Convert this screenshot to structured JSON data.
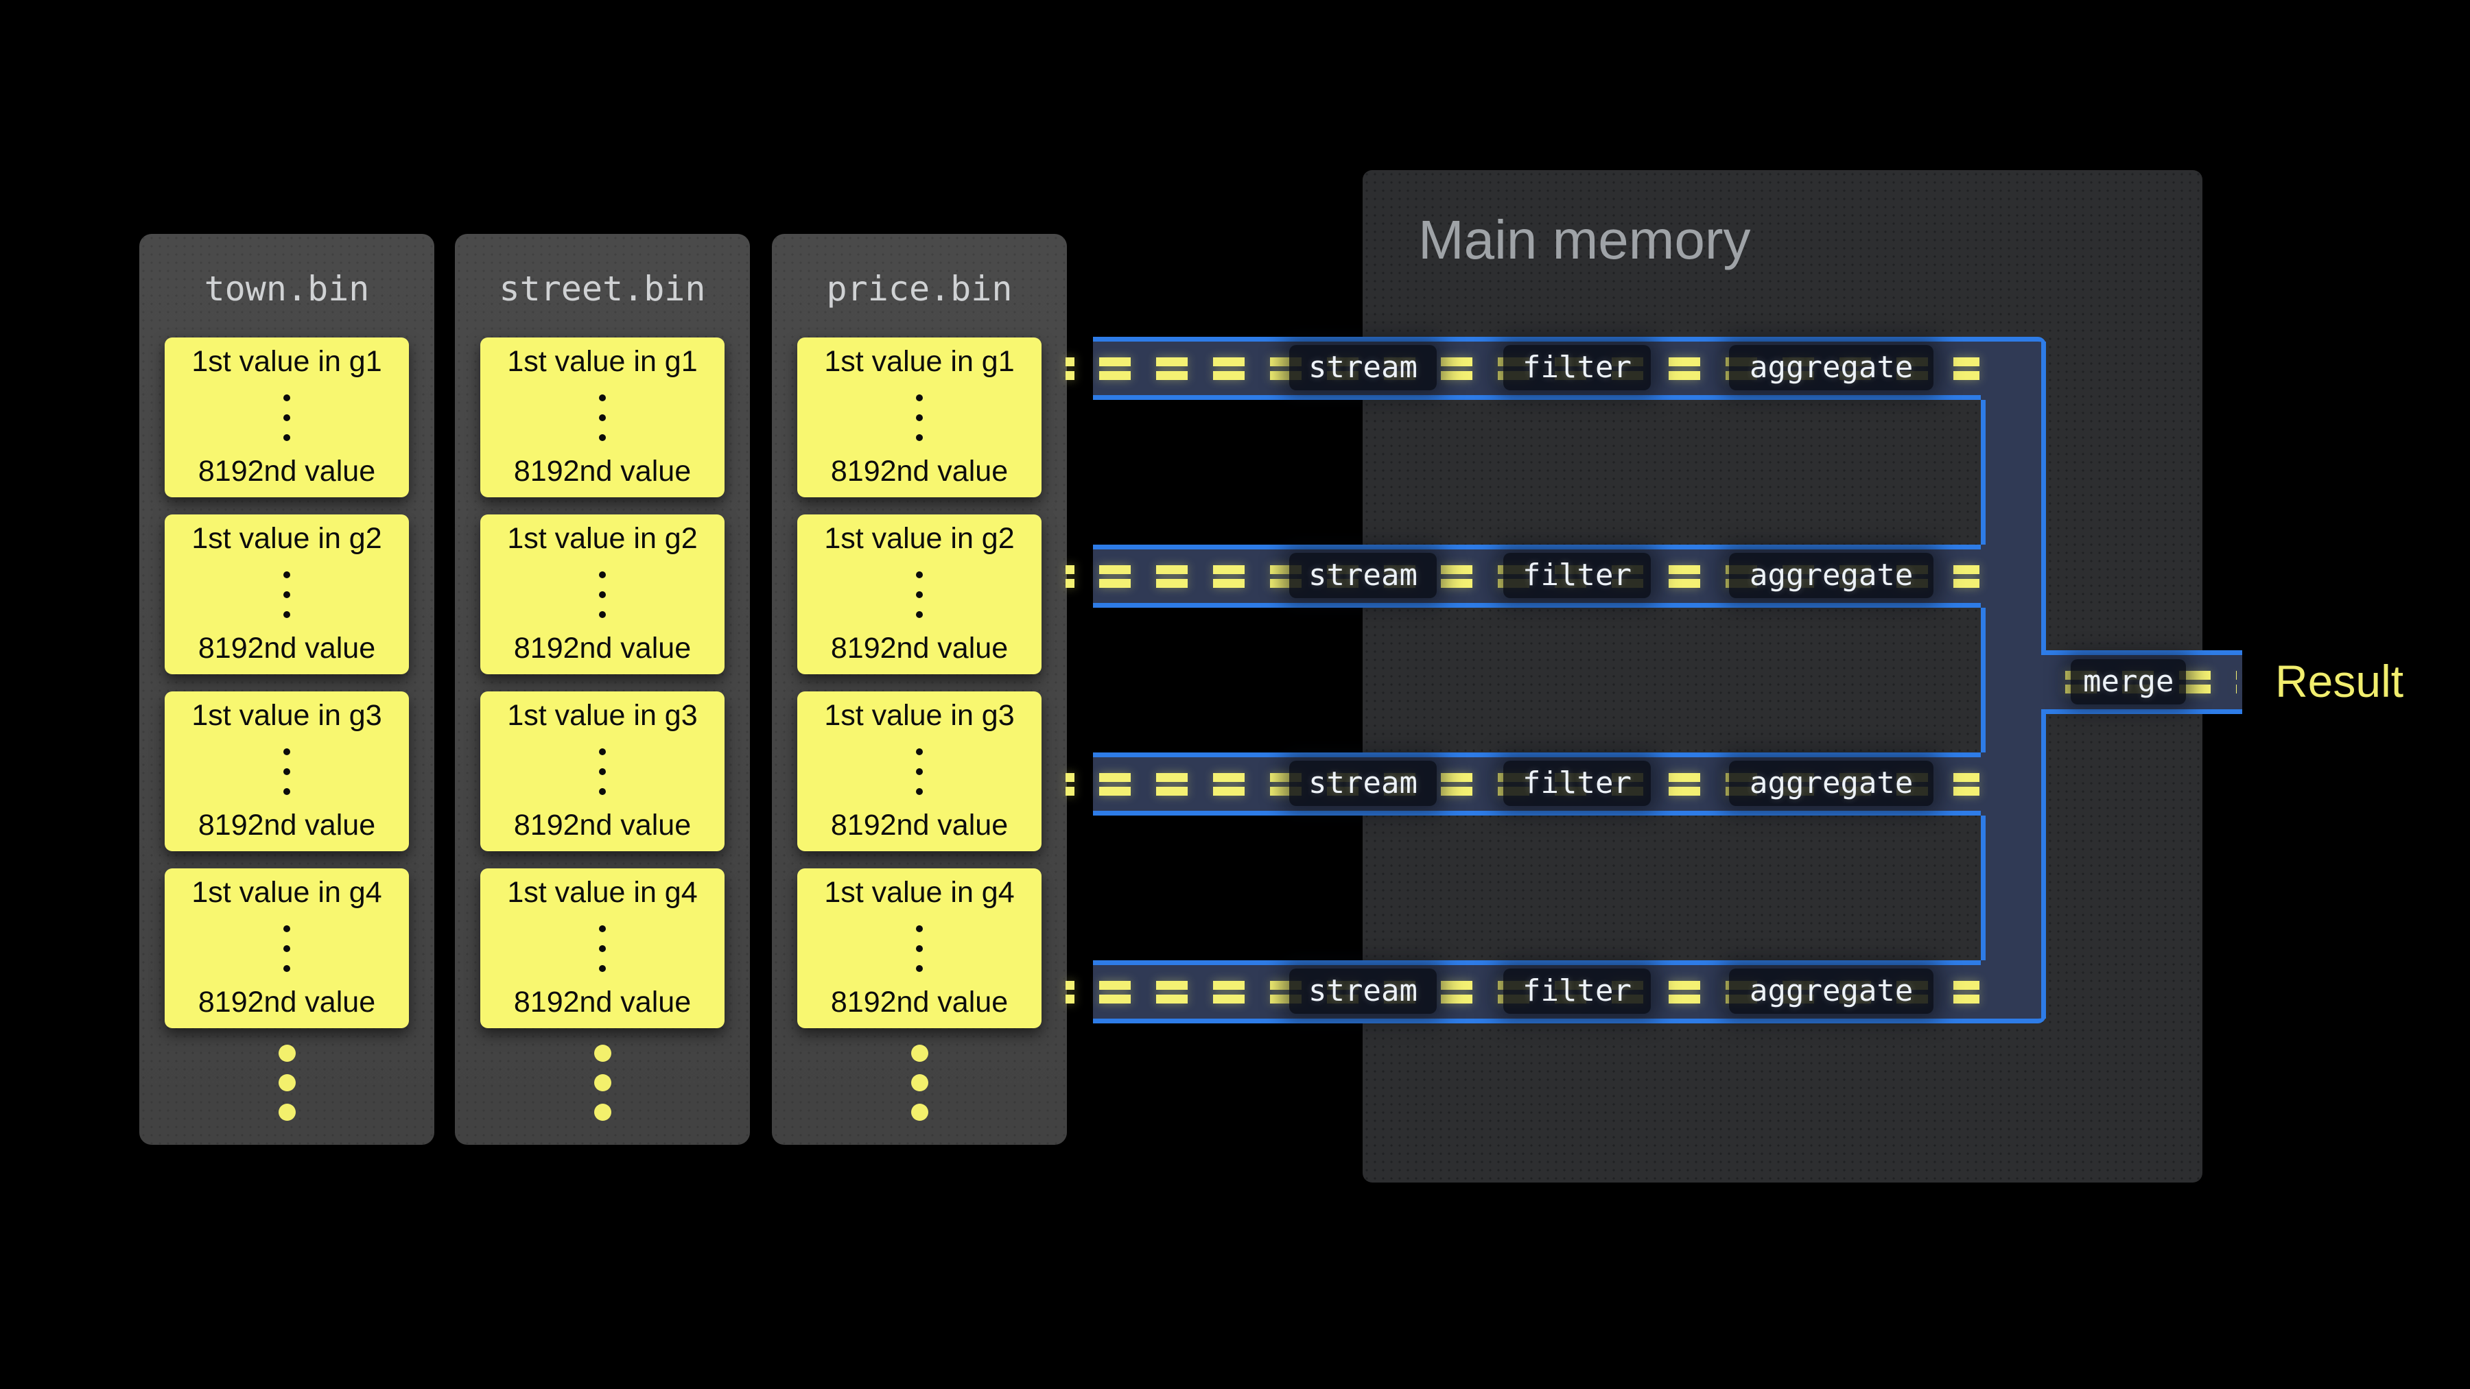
{
  "memory": {
    "title": "Main memory"
  },
  "files": [
    {
      "name": "town.bin",
      "groups": [
        {
          "first": "1st value in g1",
          "last": "8192nd value"
        },
        {
          "first": "1st value in g2",
          "last": "8192nd value"
        },
        {
          "first": "1st value in g3",
          "last": "8192nd value"
        },
        {
          "first": "1st value in g4",
          "last": "8192nd value"
        }
      ]
    },
    {
      "name": "street.bin",
      "groups": [
        {
          "first": "1st value in g1",
          "last": "8192nd value"
        },
        {
          "first": "1st value in g2",
          "last": "8192nd value"
        },
        {
          "first": "1st value in g3",
          "last": "8192nd value"
        },
        {
          "first": "1st value in g4",
          "last": "8192nd value"
        }
      ]
    },
    {
      "name": "price.bin",
      "groups": [
        {
          "first": "1st value in g1",
          "last": "8192nd value"
        },
        {
          "first": "1st value in g2",
          "last": "8192nd value"
        },
        {
          "first": "1st value in g3",
          "last": "8192nd value"
        },
        {
          "first": "1st value in g4",
          "last": "8192nd value"
        }
      ]
    }
  ],
  "pipelines": [
    {
      "stages": [
        "stream",
        "filter",
        "aggregate"
      ]
    },
    {
      "stages": [
        "stream",
        "filter",
        "aggregate"
      ]
    },
    {
      "stages": [
        "stream",
        "filter",
        "aggregate"
      ]
    },
    {
      "stages": [
        "stream",
        "filter",
        "aggregate"
      ]
    }
  ],
  "merge": {
    "label": "merge"
  },
  "result": {
    "label": "Result"
  },
  "colors": {
    "pipe-blue": "#2e7ce7",
    "pipe-navy": "#303a55",
    "dash-yellow": "#f4f173",
    "block-yellow": "#f8f770",
    "dot-yellow": "#f3f06c",
    "result-yellow": "#f1ee6e",
    "box-text": "#edf2f8"
  }
}
